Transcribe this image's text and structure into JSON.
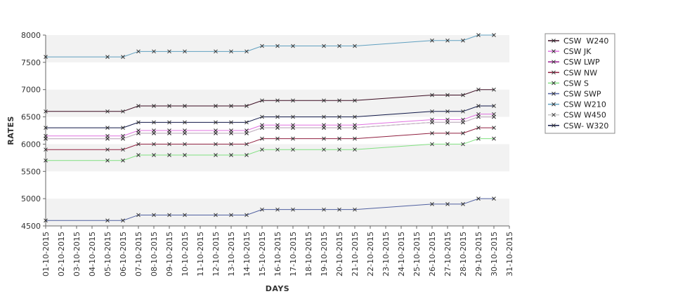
{
  "chart_data": {
    "type": "line",
    "xlabel": "DAYS",
    "ylabel": "RATES",
    "ylim": [
      4500,
      8000
    ],
    "yticks": [
      4500,
      5000,
      5500,
      6000,
      6500,
      7000,
      7500,
      8000
    ],
    "grid": "alternating horizontal bands",
    "legend_position": "right",
    "categories": [
      "01-10-2015",
      "02-10-2015",
      "03-10-2015",
      "04-10-2015",
      "05-10-2015",
      "06-10-2015",
      "07-10-2015",
      "08-10-2015",
      "09-10-2015",
      "10-10-2015",
      "11-10-2015",
      "12-10-2015",
      "13-10-2015",
      "14-10-2015",
      "15-10-2015",
      "16-10-2015",
      "17-10-2015",
      "18-10-2015",
      "19-10-2015",
      "20-10-2015",
      "21-10-2015",
      "22-10-2015",
      "23-10-2015",
      "24-10-2015",
      "25-10-2015",
      "26-10-2015",
      "27-10-2015",
      "28-10-2015",
      "29-10-2015",
      "30-10-2015",
      "31-10-2015"
    ],
    "x": [
      "01-10-2015",
      "05-10-2015",
      "06-10-2015",
      "07-10-2015",
      "08-10-2015",
      "09-10-2015",
      "10-10-2015",
      "12-10-2015",
      "13-10-2015",
      "14-10-2015",
      "15-10-2015",
      "16-10-2015",
      "17-10-2015",
      "19-10-2015",
      "20-10-2015",
      "21-10-2015",
      "26-10-2015",
      "27-10-2015",
      "28-10-2015",
      "29-10-2015",
      "30-10-2015"
    ],
    "series": [
      {
        "name": "CSW  W240",
        "color": "#3a0a20",
        "values": [
          6600,
          6600,
          6600,
          6700,
          6700,
          6700,
          6700,
          6700,
          6700,
          6700,
          6800,
          6800,
          6800,
          6800,
          6800,
          6800,
          6900,
          6900,
          6900,
          7000,
          7000
        ]
      },
      {
        "name": "CSW JK",
        "color": "#e070e0",
        "values": [
          6150,
          6150,
          6150,
          6250,
          6250,
          6250,
          6250,
          6250,
          6250,
          6250,
          6350,
          6350,
          6350,
          6350,
          6350,
          6350,
          6450,
          6450,
          6450,
          6550,
          6550
        ]
      },
      {
        "name": "CSW LWP",
        "color": "#9a2090",
        "values": [
          6100,
          6100,
          6100,
          6200,
          6200,
          6200,
          6200,
          6200,
          6200,
          6200,
          6300,
          6300,
          6300,
          6300,
          6300,
          6300,
          6400,
          6400,
          6400,
          6500,
          6500
        ]
      },
      {
        "name": "CSW NW",
        "color": "#902040",
        "values": [
          5900,
          5900,
          5900,
          6000,
          6000,
          6000,
          6000,
          6000,
          6000,
          6000,
          6100,
          6100,
          6100,
          6100,
          6100,
          6100,
          6200,
          6200,
          6200,
          6300,
          6300
        ]
      },
      {
        "name": "CSW S",
        "color": "#80e080",
        "values": [
          5700,
          5700,
          5700,
          5800,
          5800,
          5800,
          5800,
          5800,
          5800,
          5800,
          5900,
          5900,
          5900,
          5900,
          5900,
          5900,
          6000,
          6000,
          6000,
          6100,
          6100
        ]
      },
      {
        "name": "CSW SWP",
        "color": "#5060a0",
        "values": [
          4600,
          4600,
          4600,
          4700,
          4700,
          4700,
          4700,
          4700,
          4700,
          4700,
          4800,
          4800,
          4800,
          4800,
          4800,
          4800,
          4900,
          4900,
          4900,
          5000,
          5000
        ]
      },
      {
        "name": "CSW W210",
        "color": "#60a0c0",
        "values": [
          7600,
          7600,
          7600,
          7700,
          7700,
          7700,
          7700,
          7700,
          7700,
          7700,
          7800,
          7800,
          7800,
          7800,
          7800,
          7800,
          7900,
          7900,
          7900,
          8000,
          8000
        ]
      },
      {
        "name": "CSW W450",
        "color": "#c8c8c8",
        "values": [
          6100,
          6100,
          6100,
          6200,
          6200,
          6200,
          6200,
          6200,
          6200,
          6200,
          6300,
          6300,
          6300,
          6300,
          6300,
          6300,
          6400,
          6400,
          6400,
          6500,
          6500
        ]
      },
      {
        "name": "CSW- W320",
        "color": "#101848",
        "values": [
          6300,
          6300,
          6300,
          6400,
          6400,
          6400,
          6400,
          6400,
          6400,
          6400,
          6500,
          6500,
          6500,
          6500,
          6500,
          6500,
          6600,
          6600,
          6600,
          6700,
          6700
        ]
      }
    ]
  }
}
